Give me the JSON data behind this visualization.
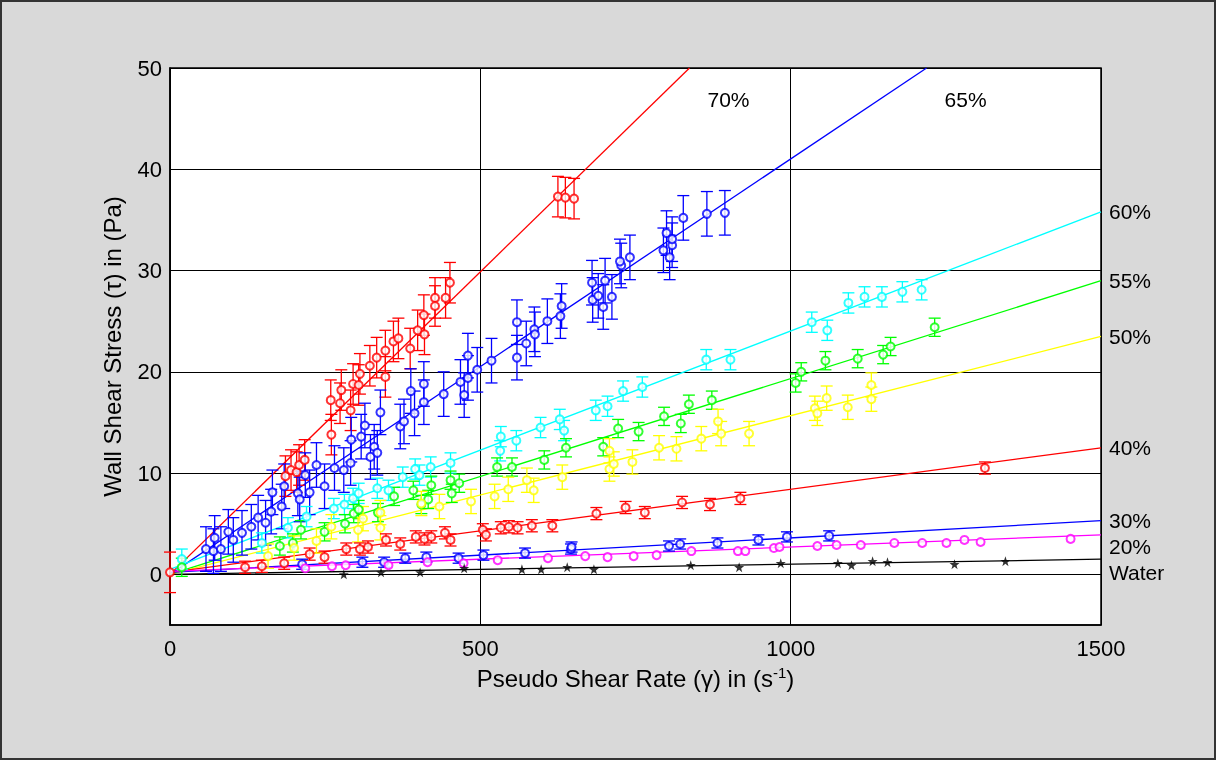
{
  "chart_data": {
    "type": "scatter",
    "xlabel": "Pseudo Shear Rate (γ) in (s$^{-1}$)",
    "ylabel": "Wall Shear Stress (τ) in (Pa)",
    "xlim": [
      0,
      1500
    ],
    "xticks": [
      0,
      500,
      1000,
      1500
    ],
    "ylim": [
      -5,
      50
    ],
    "yticks": [
      0,
      10,
      20,
      30,
      40,
      50
    ],
    "grid": true,
    "series": [
      {
        "color": "#ff0000",
        "marker": "circle",
        "x": [
          0,
          186,
          195,
          204,
          208,
          217,
          259,
          260,
          274,
          276,
          291,
          295,
          304,
          306,
          322,
          333,
          347,
          347,
          360,
          368,
          387,
          399,
          409,
          410,
          427,
          427,
          444,
          451,
          625,
          637,
          651
        ],
        "values": [
          0.2,
          9.7,
          10.3,
          10.1,
          10.8,
          11.3,
          17.2,
          13.8,
          16.9,
          18.2,
          16.2,
          18.8,
          18.7,
          19.8,
          20.6,
          21.4,
          22.1,
          19.5,
          23.0,
          23.3,
          22.3,
          24.1,
          25.6,
          23.7,
          27.3,
          26.5,
          27.3,
          28.8,
          37.3,
          37.2,
          37.1
        ],
        "errors": [
          2,
          2,
          2,
          2,
          2,
          2,
          2,
          2,
          2,
          2,
          2,
          2,
          2,
          2,
          2,
          2,
          2,
          2,
          2,
          2,
          2,
          2,
          2,
          2,
          2,
          2,
          2,
          2,
          2,
          2,
          2
        ]
      },
      {
        "type": "line",
        "name": "70%",
        "color": "#ff0000",
        "marker": "none",
        "x": [
          0,
          837
        ],
        "values": [
          0,
          50
        ]
      },
      {
        "color": "#0000ff",
        "marker": "circle",
        "x": [
          58,
          70,
          72,
          82,
          94,
          102,
          116,
          131,
          142,
          154,
          163,
          165,
          180,
          184,
          206,
          209,
          218,
          225,
          236,
          249,
          265,
          280,
          291,
          292,
          308,
          314,
          323,
          329,
          334,
          339,
          371,
          377,
          388,
          394,
          409,
          409,
          441,
          468,
          474,
          480,
          480,
          495,
          518,
          559,
          559,
          574,
          587,
          588,
          608,
          629,
          631,
          680,
          681,
          690,
          698,
          701,
          712,
          727,
          725,
          741,
          795,
          800,
          805,
          809,
          809,
          827,
          865,
          894
        ],
        "values": [
          2.5,
          2.3,
          3.6,
          2.5,
          4.2,
          3.4,
          4.1,
          4.7,
          5.6,
          5.1,
          6.2,
          8.1,
          6.7,
          8.7,
          8.0,
          7.4,
          9.8,
          8.1,
          10.8,
          8.7,
          10.5,
          10.3,
          11.0,
          13.3,
          13.6,
          14.7,
          11.6,
          12.6,
          12.0,
          16.0,
          14.6,
          15.1,
          18.1,
          15.9,
          18.8,
          17.0,
          17.8,
          19.0,
          17.7,
          21.6,
          19.4,
          20.2,
          21.1,
          24.9,
          21.4,
          22.8,
          24.2,
          23.7,
          25.0,
          25.5,
          26.5,
          28.8,
          27.1,
          27.5,
          26.4,
          29.0,
          27.4,
          30.5,
          30.9,
          31.3,
          32.0,
          33.7,
          31.3,
          32.5,
          33.1,
          35.2,
          35.6,
          35.7
        ],
        "errors": [
          2.2,
          2.2,
          2.2,
          2.2,
          2.2,
          2.2,
          2.2,
          2.2,
          2.2,
          2.2,
          2.2,
          2.2,
          2.2,
          2.2,
          2.2,
          2.2,
          2.2,
          2.2,
          2.2,
          2.2,
          2.2,
          2.2,
          2.2,
          2.2,
          2.2,
          2.2,
          2.2,
          2.2,
          2.2,
          2.2,
          2.2,
          2.2,
          2.2,
          2.2,
          2.2,
          2.2,
          2.2,
          2.2,
          2.2,
          2.2,
          2.2,
          2.2,
          2.2,
          2.2,
          2.2,
          2.2,
          2.2,
          2.2,
          2.2,
          2.2,
          2.2,
          2.2,
          2.2,
          2.2,
          2.2,
          2.2,
          2.2,
          2.2,
          2.2,
          2.2,
          2.2,
          2.2,
          2.2,
          2.2,
          2.2,
          2.2,
          2.2,
          2.2
        ]
      },
      {
        "type": "line",
        "name": "65%",
        "color": "#0000ff",
        "marker": "none",
        "x": [
          0,
          1219
        ],
        "values": [
          0,
          50
        ]
      },
      {
        "color": "#00ffff",
        "marker": "circle",
        "x": [
          19,
          148,
          190,
          220,
          264,
          281,
          295,
          304,
          334,
          352,
          375,
          395,
          402,
          420,
          452,
          532,
          533,
          558,
          597,
          628,
          635,
          686,
          705,
          730,
          761,
          864,
          903,
          1034,
          1059,
          1093,
          1119,
          1147,
          1180,
          1211
        ],
        "values": [
          1.5,
          3.1,
          4.6,
          5.7,
          6.5,
          6.9,
          7.5,
          8.0,
          8.5,
          8.3,
          9.6,
          10.4,
          9.8,
          10.6,
          11.0,
          12.2,
          13.6,
          13.2,
          14.5,
          15.3,
          14.2,
          16.2,
          16.6,
          18.1,
          18.5,
          21.2,
          21.2,
          24.9,
          24.1,
          26.8,
          27.4,
          27.4,
          27.9,
          28.1
        ],
        "errors": [
          1,
          1,
          1,
          1,
          1,
          1,
          1,
          1,
          1,
          1,
          1,
          1,
          1,
          1,
          1,
          1,
          1,
          1,
          1,
          1,
          1,
          1,
          1,
          1,
          1,
          1,
          1,
          1,
          1,
          1,
          1,
          1,
          1,
          1
        ]
      },
      {
        "type": "line",
        "name": "60%",
        "color": "#00ffff",
        "marker": "none",
        "x": [
          0,
          1500
        ],
        "values": [
          0.5,
          35.8
        ]
      },
      {
        "color": "#00ff00",
        "marker": "circle",
        "x": [
          19,
          177,
          198,
          211,
          249,
          282,
          296,
          304,
          335,
          361,
          392,
          405,
          416,
          421,
          452,
          454,
          466,
          527,
          551,
          603,
          638,
          698,
          722,
          755,
          796,
          823,
          836,
          873,
          1008,
          1017,
          1056,
          1108,
          1149,
          1161,
          1232
        ],
        "values": [
          0.7,
          2.8,
          3.1,
          4.4,
          4.2,
          5.0,
          6.0,
          6.4,
          6.1,
          7.7,
          8.3,
          6.9,
          7.4,
          8.8,
          9.3,
          8.0,
          9.0,
          10.6,
          10.6,
          11.3,
          12.5,
          12.6,
          14.4,
          14.1,
          15.6,
          14.9,
          16.8,
          17.2,
          18.9,
          20.0,
          21.1,
          21.3,
          21.7,
          22.5,
          24.4
        ],
        "errors": [
          0.9,
          0.9,
          0.9,
          0.9,
          0.9,
          0.9,
          0.9,
          0.9,
          0.9,
          0.9,
          0.9,
          0.9,
          0.9,
          0.9,
          0.9,
          0.9,
          0.9,
          0.9,
          0.9,
          0.9,
          0.9,
          0.9,
          0.9,
          0.9,
          0.9,
          0.9,
          0.9,
          0.9,
          0.9,
          0.9,
          0.9,
          0.9,
          0.9,
          0.9,
          0.9
        ]
      },
      {
        "type": "line",
        "name": "55%",
        "color": "#00ff00",
        "marker": "none",
        "x": [
          0,
          1500
        ],
        "values": [
          0,
          29.0
        ]
      },
      {
        "color": "#ffff00",
        "marker": "circle",
        "x": [
          158,
          200,
          236,
          260,
          303,
          311,
          339,
          339,
          405,
          434,
          485,
          523,
          545,
          575,
          586,
          632,
          708,
          708,
          715,
          745,
          788,
          816,
          856,
          883,
          888,
          933,
          1039,
          1043,
          1058,
          1092,
          1130,
          1130
        ],
        "values": [
          1.8,
          2.6,
          3.3,
          4.7,
          4.4,
          5.5,
          6.1,
          4.6,
          7.0,
          6.7,
          7.2,
          7.7,
          8.4,
          9.3,
          8.3,
          9.6,
          12.2,
          10.4,
          10.9,
          11.1,
          12.5,
          12.4,
          13.4,
          15.1,
          13.9,
          13.9,
          16.4,
          15.9,
          17.4,
          16.5,
          17.3,
          18.7
        ],
        "errors": [
          1.2,
          1.2,
          1.2,
          1.2,
          1.2,
          1.2,
          1.2,
          1.2,
          1.2,
          1.2,
          1.2,
          1.2,
          1.2,
          1.2,
          1.2,
          1.2,
          1.2,
          1.2,
          1.2,
          1.2,
          1.2,
          1.2,
          1.2,
          1.2,
          1.2,
          1.2,
          1.2,
          1.2,
          1.2,
          1.2,
          1.2,
          1.2
        ]
      },
      {
        "type": "line",
        "name": "50%",
        "color": "#ffff00",
        "marker": "none",
        "x": [
          0,
          1500
        ],
        "values": [
          0,
          23.5
        ]
      },
      {
        "color": "#ff0000",
        "marker": "circle",
        "x": [
          121,
          148,
          184,
          225,
          249,
          284,
          306,
          319,
          348,
          371,
          396,
          410,
          421,
          443,
          452,
          504,
          509,
          533,
          546,
          560,
          583,
          616,
          687,
          734,
          765,
          825,
          870,
          919,
          1313
        ],
        "values": [
          0.7,
          0.8,
          1.1,
          2.0,
          1.7,
          2.5,
          2.5,
          2.7,
          3.4,
          3.0,
          3.7,
          3.5,
          3.7,
          4.1,
          3.4,
          4.4,
          3.9,
          4.6,
          4.7,
          4.6,
          4.8,
          4.8,
          6.0,
          6.6,
          6.1,
          7.1,
          6.9,
          7.5,
          10.5
        ],
        "errors": [
          0.6,
          0.6,
          0.6,
          0.6,
          0.6,
          0.6,
          0.6,
          0.6,
          0.6,
          0.6,
          0.6,
          0.6,
          0.6,
          0.6,
          0.6,
          0.6,
          0.6,
          0.6,
          0.6,
          0.6,
          0.6,
          0.6,
          0.6,
          0.6,
          0.6,
          0.6,
          0.6,
          0.6,
          0.6
        ]
      },
      {
        "type": "line",
        "name": "40%",
        "color": "#ff0000",
        "marker": "none",
        "x": [
          0,
          1500
        ],
        "values": [
          0.2,
          12.5
        ]
      },
      {
        "color": "#0000ff",
        "marker": "circle",
        "x": [
          213,
          310,
          345,
          379,
          413,
          465,
          505,
          572,
          646,
          647,
          804,
          822,
          882,
          948,
          994,
          1062
        ],
        "values": [
          1.0,
          1.2,
          1.2,
          1.6,
          1.7,
          1.6,
          1.9,
          2.1,
          2.5,
          2.7,
          2.8,
          3.0,
          3.1,
          3.4,
          3.7,
          3.8
        ],
        "errors": [
          0.5,
          0.5,
          0.5,
          0.5,
          0.5,
          0.5,
          0.5,
          0.5,
          0.5,
          0.5,
          0.5,
          0.5,
          0.5,
          0.5,
          0.5,
          0.5
        ]
      },
      {
        "type": "line",
        "name": "30%",
        "color": "#0000ff",
        "marker": "none",
        "x": [
          0,
          1500
        ],
        "values": [
          0.2,
          5.3
        ]
      },
      {
        "color": "#ff00ff",
        "marker": "circle",
        "x": [
          218,
          261,
          283,
          352,
          415,
          473,
          528,
          609,
          669,
          705,
          747,
          784,
          840,
          915,
          927,
          973,
          982,
          1043,
          1074,
          1113,
          1167,
          1212,
          1251,
          1280,
          1306,
          1451
        ],
        "values": [
          0.6,
          0.8,
          0.9,
          0.9,
          1.2,
          1.1,
          1.4,
          1.6,
          1.8,
          1.7,
          1.8,
          1.9,
          2.3,
          2.3,
          2.3,
          2.6,
          2.7,
          2.8,
          2.9,
          2.9,
          3.1,
          3.1,
          3.1,
          3.4,
          3.2,
          3.5
        ]
      },
      {
        "type": "line",
        "name": "20%",
        "color": "#ff00ff",
        "marker": "none",
        "x": [
          0,
          1500
        ],
        "values": [
          0.3,
          3.9
        ]
      },
      {
        "color": "#000000",
        "marker": "star",
        "x": [
          280,
          340,
          403,
          474,
          567,
          598,
          640,
          683,
          839,
          917,
          984,
          1076,
          1098,
          1132,
          1156,
          1264,
          1346
        ],
        "values": [
          0,
          0.2,
          0.2,
          0.6,
          0.5,
          0.5,
          0.7,
          0.5,
          0.9,
          0.7,
          1.1,
          1.1,
          0.9,
          1.3,
          1.2,
          1.0,
          1.3
        ]
      },
      {
        "type": "line",
        "name": "Water",
        "color": "#000000",
        "marker": "none",
        "x": [
          0,
          1500
        ],
        "values": [
          0,
          1.5
        ]
      }
    ]
  }
}
